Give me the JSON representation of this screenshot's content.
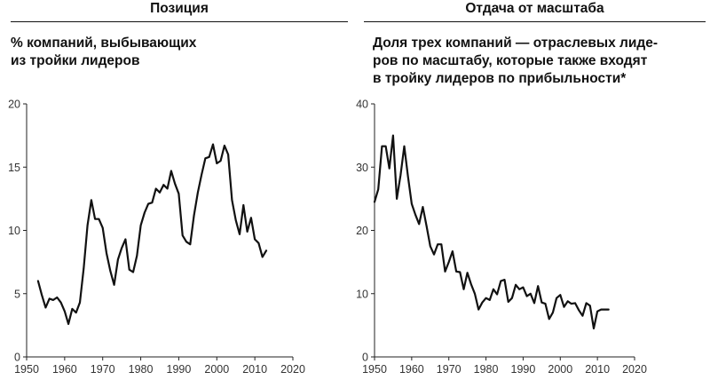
{
  "chart_data": [
    {
      "type": "line",
      "heading": "Позиция",
      "title": "% компаний, выбывающих из тройки лидеров",
      "title_lines": [
        "% компаний, выбывающих",
        "из тройки лидеров"
      ],
      "xlabel": "",
      "ylabel": "",
      "xlim": [
        1950,
        2020
      ],
      "ylim": [
        0,
        20
      ],
      "xticks": [
        1950,
        1960,
        1970,
        1980,
        1990,
        2000,
        2010,
        2020
      ],
      "yticks": [
        0,
        5,
        10,
        15,
        20
      ],
      "grid": false,
      "series": [
        {
          "x": [
            1953,
            1954,
            1955,
            1956,
            1957,
            1958,
            1959,
            1960,
            1961,
            1962,
            1963,
            1964,
            1965,
            1966,
            1967,
            1968,
            1969,
            1970,
            1971,
            1972,
            1973,
            1974,
            1975,
            1976,
            1977,
            1978,
            1979,
            1980,
            1981,
            1982,
            1983,
            1984,
            1985,
            1986,
            1987,
            1988,
            1989,
            1990,
            1991,
            1992,
            1993,
            1994,
            1995,
            1996,
            1997,
            1998,
            1999,
            2000,
            2001,
            2002,
            2003,
            2004,
            2005,
            2006,
            2007,
            2008,
            2009,
            2010,
            2011,
            2012,
            2013
          ],
          "values": [
            6.0,
            4.9,
            3.9,
            4.6,
            4.5,
            4.7,
            4.3,
            3.6,
            2.6,
            3.8,
            3.5,
            4.3,
            7.0,
            10.4,
            12.4,
            10.9,
            10.9,
            10.2,
            8.2,
            6.8,
            5.7,
            7.7,
            8.6,
            9.3,
            6.9,
            6.7,
            8.0,
            10.4,
            11.4,
            12.1,
            12.2,
            13.3,
            13.0,
            13.6,
            13.3,
            14.7,
            13.7,
            12.9,
            9.6,
            9.1,
            8.9,
            11.2,
            13.0,
            14.4,
            15.7,
            15.8,
            16.8,
            15.3,
            15.5,
            16.7,
            16.0,
            12.4,
            10.8,
            9.7,
            12.0,
            9.9,
            11.0,
            9.3,
            9.0,
            7.9,
            8.4
          ]
        }
      ]
    },
    {
      "type": "line",
      "heading": "Отдача от масштаба",
      "title": "Доля трех компаний — отраслевых лидеров по масштабу, которые также входят в тройку лидеров по прибыльности*",
      "title_lines": [
        "Доля трех компаний — отраслевых лиде-",
        "ров по масштабу, которые также входят",
        "в тройку лидеров по прибыльности*"
      ],
      "xlabel": "",
      "ylabel": "",
      "xlim": [
        1950,
        2020
      ],
      "ylim": [
        0,
        40
      ],
      "xticks": [
        1950,
        1960,
        1970,
        1980,
        1990,
        2000,
        2010,
        2020
      ],
      "yticks": [
        0,
        10,
        20,
        30,
        40
      ],
      "grid": false,
      "series": [
        {
          "x": [
            1950,
            1951,
            1952,
            1953,
            1954,
            1955,
            1956,
            1957,
            1958,
            1959,
            1960,
            1961,
            1962,
            1963,
            1964,
            1965,
            1966,
            1967,
            1968,
            1969,
            1970,
            1971,
            1972,
            1973,
            1974,
            1975,
            1976,
            1977,
            1978,
            1979,
            1980,
            1981,
            1982,
            1983,
            1984,
            1985,
            1986,
            1987,
            1988,
            1989,
            1990,
            1991,
            1992,
            1993,
            1994,
            1995,
            1996,
            1997,
            1998,
            1999,
            2000,
            2001,
            2002,
            2003,
            2004,
            2005,
            2006,
            2007,
            2008,
            2009,
            2010,
            2011,
            2012,
            2013
          ],
          "values": [
            24.5,
            26.5,
            33.3,
            33.3,
            29.8,
            35.0,
            25.0,
            28.7,
            33.3,
            28.5,
            24.2,
            22.5,
            21.0,
            23.7,
            20.7,
            17.5,
            16.2,
            17.8,
            17.8,
            13.5,
            15.0,
            16.7,
            13.5,
            13.4,
            10.7,
            13.3,
            11.5,
            10.0,
            7.5,
            8.6,
            9.3,
            9.0,
            10.7,
            9.9,
            12.0,
            12.2,
            8.7,
            9.3,
            11.4,
            10.7,
            11.0,
            9.6,
            10.0,
            8.5,
            11.2,
            8.6,
            8.4,
            6.0,
            7.0,
            9.3,
            9.8,
            7.9,
            8.8,
            8.4,
            8.5,
            7.4,
            6.5,
            8.5,
            8.1,
            4.5,
            7.2,
            7.5,
            7.5,
            7.5
          ]
        }
      ]
    }
  ]
}
